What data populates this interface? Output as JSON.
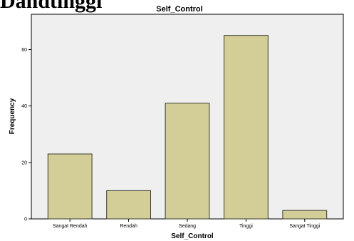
{
  "heading_text": "Dandtinggi",
  "chart_data": {
    "type": "bar",
    "title": "Self_Control",
    "xlabel": "Self_Control",
    "ylabel": "Frequency",
    "categories": [
      "Sangat Rendah",
      "Rendah",
      "Sedang",
      "Tinggi",
      "Sangat Tinggi"
    ],
    "values": [
      23,
      10,
      41,
      65,
      3
    ],
    "ylim": [
      0,
      72.5
    ],
    "yticks": [
      0,
      20,
      40,
      60
    ],
    "ytick_labels": [
      "0",
      "20",
      "40",
      "60"
    ],
    "grid": false,
    "legend": "none",
    "colors": {
      "bar_fill": "#d3ce97",
      "bar_stroke": "#3a3a2e",
      "plot_background": "#efefef"
    }
  }
}
